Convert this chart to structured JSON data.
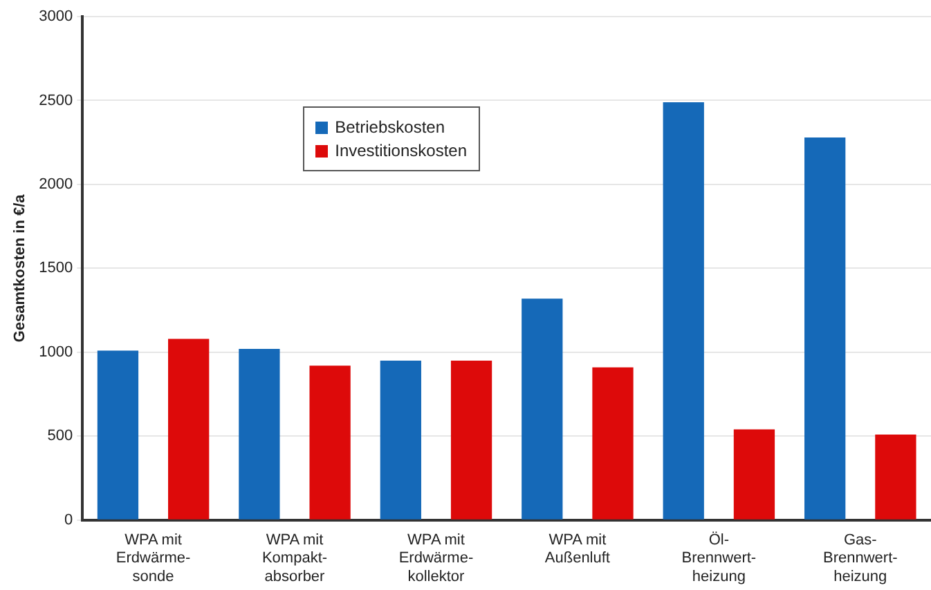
{
  "chart_data": {
    "type": "bar",
    "ylabel": "Gesamtkosten in €/a",
    "categories": [
      "WPA mit\nErdwärme-\nsonde",
      "WPA mit\nKompakt-\nabsorber",
      "WPA mit\nErdwärme-\nkollektor",
      "WPA mit\nAußenluft",
      "Öl-\nBrennwert-\nheizung",
      "Gas-\nBrennwert-\nheizung"
    ],
    "series": [
      {
        "name": "Betriebskosten",
        "color": "#1569b8",
        "values": [
          1010,
          1020,
          950,
          1320,
          2490,
          2280
        ]
      },
      {
        "name": "Investitionskosten",
        "color": "#dd0a0a",
        "values": [
          1080,
          920,
          950,
          910,
          540,
          510
        ]
      }
    ],
    "ylim": [
      0,
      3000
    ],
    "yticks": [
      0,
      500,
      1000,
      1500,
      2000,
      2500,
      3000
    ],
    "grid": "y",
    "legend": "top left"
  }
}
